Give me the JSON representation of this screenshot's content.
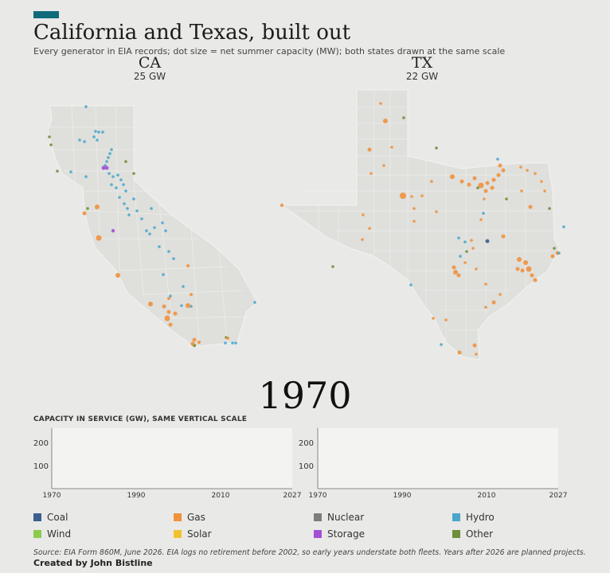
{
  "header": {
    "title": "California and Texas, built out",
    "subtitle": "Every generator in EIA records; dot size = net summer capacity (MW); both states drawn at the same scale",
    "accent_color": "#0f6b7a"
  },
  "states": [
    {
      "abbr": "CA",
      "capacity": "25 GW"
    },
    {
      "abbr": "TX",
      "capacity": "22 GW"
    }
  ],
  "year": "1970",
  "capacity_panel": {
    "heading": "CAPACITY IN SERVICE (GW), SAME VERTICAL SCALE",
    "y_ticks": [
      "200",
      "100"
    ],
    "x_ticks": [
      "1970",
      "1990",
      "2010",
      "2027"
    ]
  },
  "legend": [
    {
      "label": "Coal",
      "color": "#3b5f8f"
    },
    {
      "label": "Gas",
      "color": "#f0913e"
    },
    {
      "label": "Nuclear",
      "color": "#7d7d7d"
    },
    {
      "label": "Hydro",
      "color": "#4aa7cc"
    },
    {
      "label": "Wind",
      "color": "#8bcb4e"
    },
    {
      "label": "Solar",
      "color": "#f2c12e"
    },
    {
      "label": "Storage",
      "color": "#a44fd6"
    },
    {
      "label": "Other",
      "color": "#6e8f3a"
    }
  ],
  "footer": {
    "source": "Source: EIA Form 860M, June 2026. EIA logs no retirement before 2002, so early years understate both fleets. Years after 2026 are planned projects.",
    "credit": "Created by John Bistline"
  },
  "chart_data": [
    {
      "type": "scatter",
      "title": "CA",
      "subtitle": "25 GW",
      "year": "1970",
      "fuel_summary": [
        {
          "fuel": "Hydro",
          "approx_plants": 70
        },
        {
          "fuel": "Gas",
          "approx_plants": 25
        },
        {
          "fuel": "Other",
          "approx_plants": 8
        },
        {
          "fuel": "Storage",
          "approx_plants": 3
        }
      ]
    },
    {
      "type": "scatter",
      "title": "TX",
      "subtitle": "22 GW",
      "year": "1970",
      "fuel_summary": [
        {
          "fuel": "Gas",
          "approx_plants": 75
        },
        {
          "fuel": "Hydro",
          "approx_plants": 15
        },
        {
          "fuel": "Other",
          "approx_plants": 10
        },
        {
          "fuel": "Coal",
          "approx_plants": 2
        }
      ]
    },
    {
      "type": "area",
      "title": "CAPACITY IN SERVICE (GW), SAME VERTICAL SCALE",
      "x_range": [
        1970,
        2027
      ],
      "y_ticks": [
        100,
        200
      ],
      "series": []
    }
  ]
}
